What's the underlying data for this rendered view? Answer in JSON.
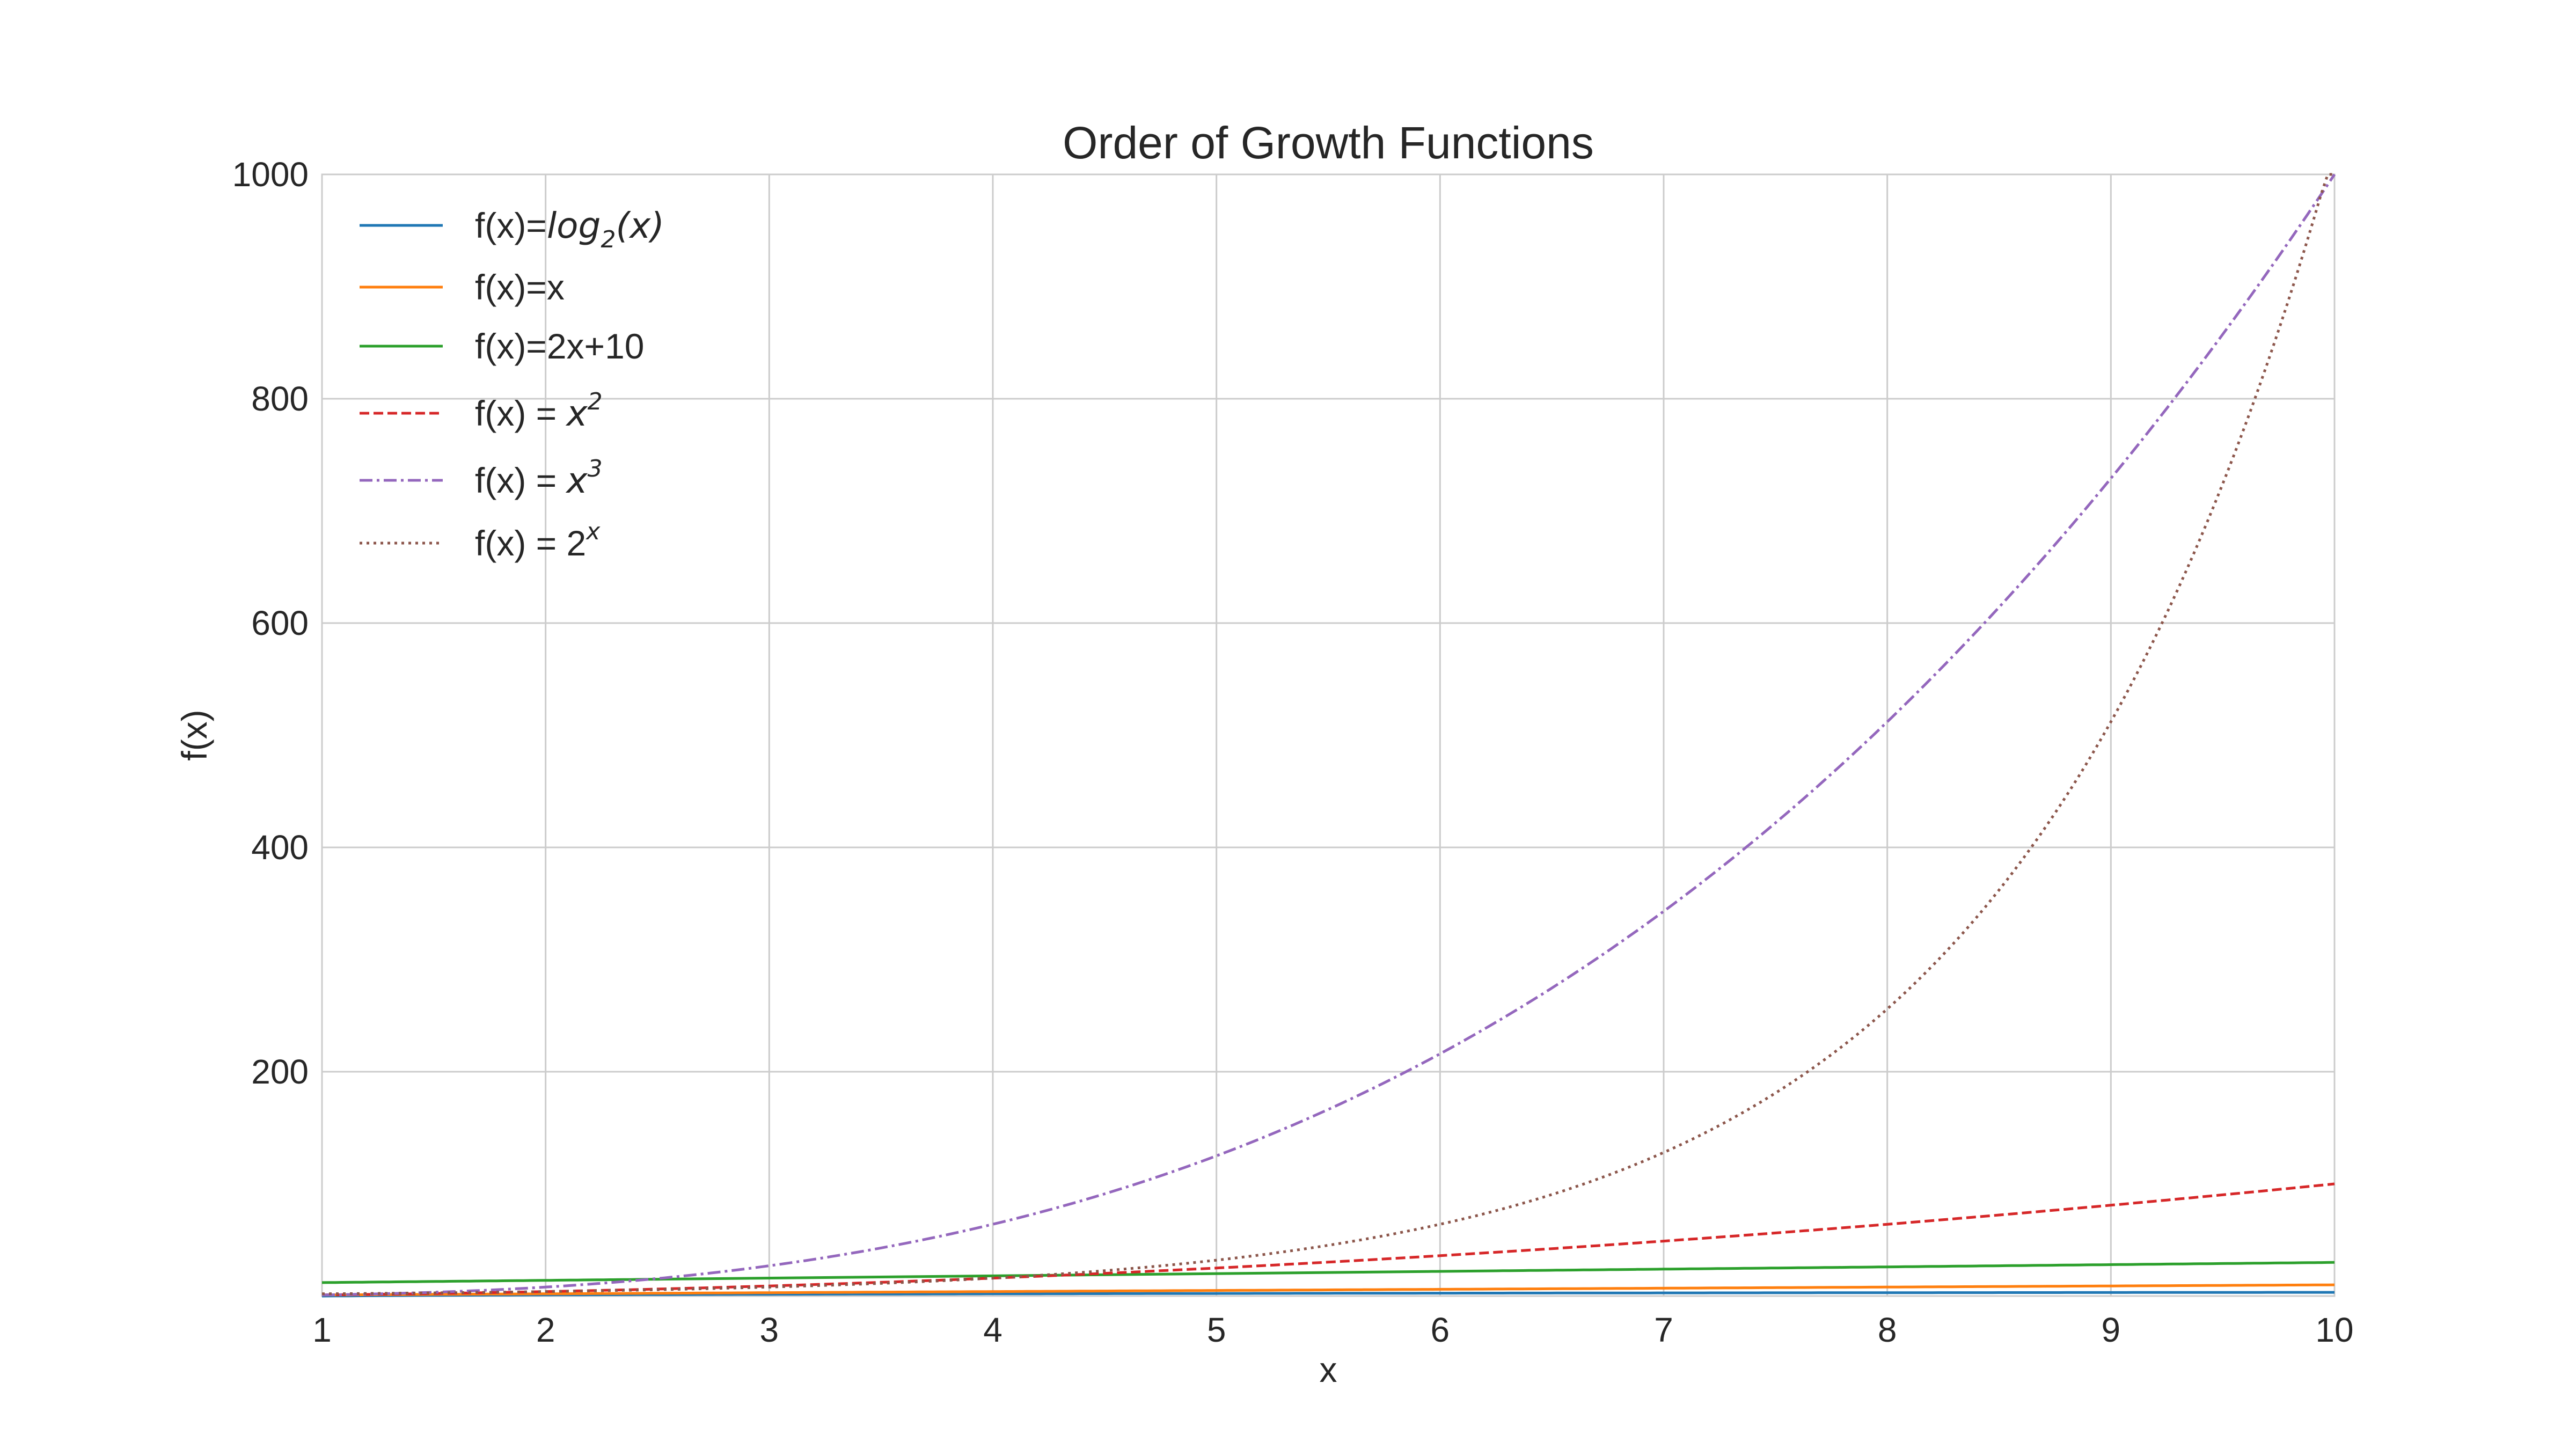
{
  "chart_data": {
    "type": "line",
    "title": "Order of Growth Functions",
    "xlabel": "x",
    "ylabel": "f(x)",
    "xlim": [
      1,
      10
    ],
    "ylim": [
      0,
      1000
    ],
    "xticks": [
      "1",
      "2",
      "3",
      "4",
      "5",
      "6",
      "7",
      "8",
      "9",
      "10"
    ],
    "yticks": [
      "200",
      "400",
      "600",
      "800",
      "1000"
    ],
    "grid": true,
    "legend_position": "top-left",
    "x": [
      1,
      1.5,
      2,
      2.5,
      3,
      3.5,
      4,
      4.5,
      5,
      5.5,
      6,
      6.5,
      7,
      7.5,
      8,
      8.5,
      9,
      9.5,
      10
    ],
    "series": [
      {
        "name": "f(x)=log2(x)",
        "color": "#1f77b4",
        "style": "solid",
        "values": [
          0,
          0.58,
          1,
          1.32,
          1.58,
          1.81,
          2,
          2.17,
          2.32,
          2.46,
          2.58,
          2.7,
          2.81,
          2.91,
          3,
          3.09,
          3.17,
          3.25,
          3.32
        ]
      },
      {
        "name": "f(x)=x",
        "color": "#ff7f0e",
        "style": "solid",
        "values": [
          1,
          1.5,
          2,
          2.5,
          3,
          3.5,
          4,
          4.5,
          5,
          5.5,
          6,
          6.5,
          7,
          7.5,
          8,
          8.5,
          9,
          9.5,
          10
        ]
      },
      {
        "name": "f(x)=2x+10",
        "color": "#2ca02c",
        "style": "solid",
        "values": [
          12,
          13,
          14,
          15,
          16,
          17,
          18,
          19,
          20,
          21,
          22,
          23,
          24,
          25,
          26,
          27,
          28,
          29,
          30
        ]
      },
      {
        "name": "f(x) = x2",
        "color": "#d62728",
        "style": "dashed",
        "values": [
          1,
          2.25,
          4,
          6.25,
          9,
          12.25,
          16,
          20.25,
          25,
          30.25,
          36,
          42.25,
          49,
          56.25,
          64,
          72.25,
          81,
          90.25,
          100
        ]
      },
      {
        "name": "f(x) = x3",
        "color": "#9467bd",
        "style": "dashdot",
        "values": [
          1,
          3.38,
          8,
          15.63,
          27,
          42.88,
          64,
          91.13,
          125,
          166.38,
          216,
          274.63,
          343,
          421.88,
          512,
          614.13,
          729,
          857.38,
          1000
        ]
      },
      {
        "name": "f(x) = 2x",
        "color": "#8c564b",
        "style": "dotted",
        "values": [
          2,
          2.83,
          4,
          5.66,
          8,
          11.31,
          16,
          22.63,
          32,
          45.25,
          64,
          90.51,
          128,
          181.02,
          256,
          362.04,
          512,
          724.08,
          1024
        ]
      }
    ]
  },
  "legend": {
    "log_prefix": "f(x)=",
    "log_math": "log",
    "log_sub": "2",
    "log_arg": "(x)",
    "linear": "f(x)=x",
    "affine": "f(x)=2x+10",
    "quad_prefix": "f(x) = ",
    "quad_base": "x",
    "quad_exp": "2",
    "cubic_prefix": "f(x) = ",
    "cubic_base": "x",
    "cubic_exp": "3",
    "exp_prefix": "f(x) = ",
    "exp_base": "2",
    "exp_exp": "x"
  }
}
